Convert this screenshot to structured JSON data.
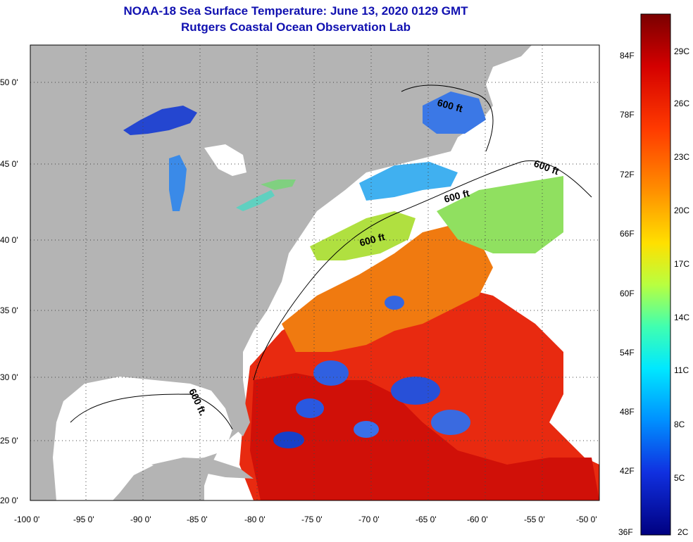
{
  "title_line1": "NOAA-18 Sea Surface Temperature:  June 13, 2020 0129 GMT",
  "title_line2": "Rutgers Coastal Ocean Observation Lab",
  "depth_label": "600 ft",
  "depth_label_gulf": "600 ft.",
  "lat_ticks": [
    "50 0'",
    "45 0'",
    "40 0'",
    "35 0'",
    "30 0'",
    "25 0'",
    "20 0'"
  ],
  "lon_ticks": [
    "-100 0'",
    "-95 0'",
    "-90 0'",
    "-85 0'",
    "-80 0'",
    "-75 0'",
    "-70 0'",
    "-65 0'",
    "-60 0'",
    "-55 0'",
    "-50 0'"
  ],
  "colorbar": {
    "f_labels": [
      "84F",
      "78F",
      "72F",
      "66F",
      "60F",
      "54F",
      "48F",
      "42F",
      "36F"
    ],
    "c_labels": [
      "29C",
      "26C",
      "23C",
      "20C",
      "17C",
      "14C",
      "11C",
      "8C",
      "5C",
      "2C"
    ]
  },
  "colors": {
    "land": "#b4b4b4",
    "cloud": "#ffffff",
    "title": "#1010b0"
  }
}
